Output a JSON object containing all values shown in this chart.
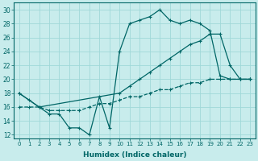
{
  "title": "",
  "xlabel": "Humidex (Indice chaleur)",
  "bg_color": "#c8ecec",
  "grid_color": "#a0d8d8",
  "line_color": "#006666",
  "xlim": [
    -0.5,
    23.5
  ],
  "ylim": [
    11.5,
    31
  ],
  "xticks": [
    0,
    1,
    2,
    3,
    4,
    5,
    6,
    7,
    8,
    9,
    10,
    11,
    12,
    13,
    14,
    15,
    16,
    17,
    18,
    19,
    20,
    21,
    22,
    23
  ],
  "yticks": [
    12,
    14,
    16,
    18,
    20,
    22,
    24,
    26,
    28,
    30
  ],
  "line1_x": [
    0,
    1,
    2,
    3,
    4,
    5,
    6,
    7,
    8,
    9,
    10,
    11,
    12,
    13,
    14,
    15,
    16,
    17,
    18,
    19,
    20,
    21,
    22,
    23
  ],
  "line1_y": [
    18,
    17,
    16,
    15,
    15,
    13,
    13,
    12,
    17.5,
    13,
    24,
    28,
    28.5,
    29,
    30,
    28.5,
    28,
    28.5,
    28,
    27,
    20.5,
    20,
    20,
    20
  ],
  "line2_x": [
    0,
    2,
    10,
    11,
    12,
    13,
    14,
    15,
    16,
    17,
    18,
    19,
    20,
    21,
    22,
    23
  ],
  "line2_y": [
    18,
    16,
    18,
    19,
    20,
    21,
    22,
    23,
    24,
    25,
    25.5,
    26.5,
    26.5,
    22,
    20,
    20
  ],
  "line3_x": [
    0,
    1,
    2,
    3,
    4,
    5,
    6,
    7,
    8,
    9,
    10,
    11,
    12,
    13,
    14,
    15,
    16,
    17,
    18,
    19,
    20,
    21,
    22,
    23
  ],
  "line3_y": [
    16,
    16,
    16,
    15.5,
    15.5,
    15.5,
    15.5,
    16,
    16.5,
    16.5,
    17,
    17.5,
    17.5,
    18,
    18.5,
    18.5,
    19,
    19.5,
    19.5,
    20,
    20,
    20,
    20,
    20
  ]
}
